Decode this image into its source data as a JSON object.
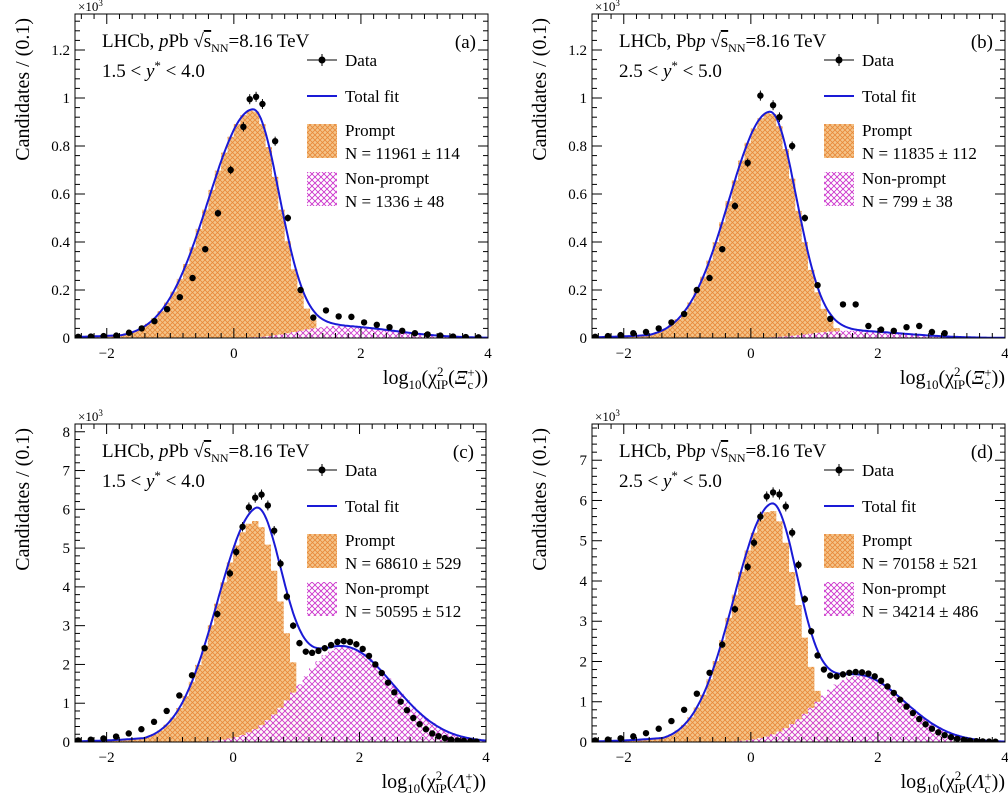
{
  "colors": {
    "data": "#000000",
    "total_fit": "#1a1ad6",
    "prompt": "#e8a35a",
    "nonprompt": "#cc33cc"
  },
  "chart_data": [
    {
      "id": "a",
      "type": "histogram-fit",
      "panel_label": "(a)",
      "exp_label": "×10³",
      "experiment": "LHCb,",
      "beam": "pPb",
      "energy": "√sNN=8.16 TeV",
      "rapidity": "1.5 < y* < 4.0",
      "ylabel": "Candidates / (0.1)",
      "xlabel": "log10(χ²IP(Ξc+))",
      "xlim": [
        -2.5,
        4
      ],
      "ylim": [
        0,
        1.35
      ],
      "xticks": [
        -2,
        0,
        2,
        4
      ],
      "yticks": [
        0,
        0.2,
        0.4,
        0.6,
        0.8,
        1,
        1.2
      ],
      "ytick_labels": [
        "0",
        "0.2",
        "0.4",
        "0.6",
        "0.8",
        "1",
        "1.2"
      ],
      "legend": [
        "Data",
        "Total fit",
        "Prompt",
        "N = 11961 ± 114",
        "Non-prompt",
        "N = 1336 ± 48"
      ],
      "prompt": {
        "mu": 0.3,
        "sl": 0.7,
        "sr": 0.42,
        "amp": 0.95,
        "tail": 0.35
      },
      "nonprompt": {
        "mu": 1.6,
        "sl": 0.55,
        "sr": 0.9,
        "amp": 0.05
      },
      "data_points": [
        [
          -2.45,
          0.005
        ],
        [
          -2.25,
          0.006
        ],
        [
          -2.05,
          0.008
        ],
        [
          -1.85,
          0.01
        ],
        [
          -1.65,
          0.022
        ],
        [
          -1.45,
          0.04
        ],
        [
          -1.25,
          0.07
        ],
        [
          -1.05,
          0.12
        ],
        [
          -0.85,
          0.17
        ],
        [
          -0.65,
          0.25
        ],
        [
          -0.45,
          0.37
        ],
        [
          -0.25,
          0.52
        ],
        [
          -0.05,
          0.7
        ],
        [
          0.15,
          0.88
        ],
        [
          0.25,
          0.995
        ],
        [
          0.35,
          1.005
        ],
        [
          0.45,
          0.975
        ],
        [
          0.65,
          0.82
        ],
        [
          0.85,
          0.5
        ],
        [
          1.05,
          0.2
        ],
        [
          1.25,
          0.085
        ],
        [
          1.45,
          0.115
        ],
        [
          1.65,
          0.09
        ],
        [
          1.85,
          0.088
        ],
        [
          2.05,
          0.065
        ],
        [
          2.25,
          0.055
        ],
        [
          2.45,
          0.045
        ],
        [
          2.65,
          0.03
        ],
        [
          2.85,
          0.02
        ],
        [
          3.05,
          0.015
        ],
        [
          3.25,
          0.01
        ],
        [
          3.45,
          0.006
        ],
        [
          3.65,
          0.004
        ],
        [
          3.85,
          0.003
        ]
      ]
    },
    {
      "id": "b",
      "type": "histogram-fit",
      "panel_label": "(b)",
      "exp_label": "×10³",
      "experiment": "LHCb,",
      "beam": "Pbp",
      "energy": "√sNN=8.16 TeV",
      "rapidity": "2.5 < y* < 5.0",
      "ylabel": "Candidates / (0.1)",
      "xlabel": "log10(χ²IP(Ξc+))",
      "xlim": [
        -2.5,
        4
      ],
      "ylim": [
        0,
        1.35
      ],
      "xticks": [
        -2,
        0,
        2,
        4
      ],
      "yticks": [
        0,
        0.2,
        0.4,
        0.6,
        0.8,
        1,
        1.2
      ],
      "ytick_labels": [
        "0",
        "0.2",
        "0.4",
        "0.6",
        "0.8",
        "1",
        "1.2"
      ],
      "legend": [
        "Data",
        "Total fit",
        "Prompt",
        "N = 11835 ± 112",
        "Non-prompt",
        "N = 799 ± 38"
      ],
      "prompt": {
        "mu": 0.3,
        "sl": 0.65,
        "sr": 0.42,
        "amp": 0.94,
        "tail": 0.35
      },
      "nonprompt": {
        "mu": 1.5,
        "sl": 0.55,
        "sr": 0.9,
        "amp": 0.03
      },
      "data_points": [
        [
          -2.45,
          0.005
        ],
        [
          -2.25,
          0.008
        ],
        [
          -2.05,
          0.012
        ],
        [
          -1.85,
          0.02
        ],
        [
          -1.65,
          0.025
        ],
        [
          -1.45,
          0.04
        ],
        [
          -1.25,
          0.065
        ],
        [
          -1.05,
          0.1
        ],
        [
          -0.85,
          0.2
        ],
        [
          -0.65,
          0.25
        ],
        [
          -0.45,
          0.37
        ],
        [
          -0.25,
          0.55
        ],
        [
          -0.05,
          0.73
        ],
        [
          0.15,
          1.01
        ],
        [
          0.35,
          0.97
        ],
        [
          0.45,
          0.92
        ],
        [
          0.65,
          0.8
        ],
        [
          0.85,
          0.5
        ],
        [
          1.05,
          0.22
        ],
        [
          1.25,
          0.08
        ],
        [
          1.45,
          0.14
        ],
        [
          1.65,
          0.14
        ],
        [
          1.85,
          0.05
        ],
        [
          2.05,
          0.035
        ],
        [
          2.25,
          0.03
        ],
        [
          2.45,
          0.045
        ],
        [
          2.65,
          0.05
        ],
        [
          2.85,
          0.025
        ],
        [
          3.05,
          0.02
        ]
      ]
    },
    {
      "id": "c",
      "type": "histogram-fit",
      "panel_label": "(c)",
      "exp_label": "×10³",
      "experiment": "LHCb,",
      "beam": "pPb",
      "energy": "√sNN=8.16 TeV",
      "rapidity": "1.5 < y* < 4.0",
      "ylabel": "Candidates / (0.1)",
      "xlabel": "log10(χ²IP(Λc+))",
      "xlim": [
        -2.5,
        4
      ],
      "ylim": [
        0,
        8.2
      ],
      "xticks": [
        -2,
        0,
        2,
        4
      ],
      "yticks": [
        0,
        1,
        2,
        3,
        4,
        5,
        6,
        7,
        8
      ],
      "ytick_labels": [
        "0",
        "1",
        "2",
        "3",
        "4",
        "5",
        "6",
        "7",
        "8"
      ],
      "legend": [
        "Data",
        "Total fit",
        "Prompt",
        "N = 68610 ± 529",
        "Non-prompt",
        "N = 50595 ± 512"
      ],
      "prompt": {
        "mu": 0.35,
        "sl": 0.62,
        "sr": 0.42,
        "amp": 5.7,
        "tail": 0.45
      },
      "nonprompt": {
        "mu": 1.75,
        "sl": 0.7,
        "sr": 0.78,
        "amp": 2.45
      },
      "data_points": [
        [
          -2.45,
          0.04
        ],
        [
          -2.25,
          0.06
        ],
        [
          -2.05,
          0.09
        ],
        [
          -1.85,
          0.14
        ],
        [
          -1.65,
          0.22
        ],
        [
          -1.45,
          0.33
        ],
        [
          -1.25,
          0.52
        ],
        [
          -1.05,
          0.8
        ],
        [
          -0.85,
          1.2
        ],
        [
          -0.65,
          1.72
        ],
        [
          -0.45,
          2.42
        ],
        [
          -0.25,
          3.3
        ],
        [
          -0.05,
          4.35
        ],
        [
          0.05,
          4.9
        ],
        [
          0.15,
          5.55
        ],
        [
          0.25,
          6.05
        ],
        [
          0.35,
          6.3
        ],
        [
          0.45,
          6.38
        ],
        [
          0.55,
          6.1
        ],
        [
          0.65,
          5.45
        ],
        [
          0.75,
          4.6
        ],
        [
          0.85,
          3.75
        ],
        [
          0.95,
          3.0
        ],
        [
          1.05,
          2.55
        ],
        [
          1.15,
          2.33
        ],
        [
          1.25,
          2.3
        ],
        [
          1.35,
          2.35
        ],
        [
          1.45,
          2.42
        ],
        [
          1.55,
          2.5
        ],
        [
          1.65,
          2.58
        ],
        [
          1.75,
          2.6
        ],
        [
          1.85,
          2.58
        ],
        [
          1.95,
          2.52
        ],
        [
          2.05,
          2.4
        ],
        [
          2.15,
          2.22
        ],
        [
          2.25,
          2.0
        ],
        [
          2.35,
          1.78
        ],
        [
          2.45,
          1.53
        ],
        [
          2.55,
          1.28
        ],
        [
          2.65,
          1.04
        ],
        [
          2.75,
          0.82
        ],
        [
          2.85,
          0.62
        ],
        [
          2.95,
          0.46
        ],
        [
          3.05,
          0.33
        ],
        [
          3.15,
          0.22
        ],
        [
          3.25,
          0.15
        ],
        [
          3.35,
          0.1
        ],
        [
          3.45,
          0.06
        ],
        [
          3.55,
          0.04
        ],
        [
          3.65,
          0.03
        ],
        [
          3.75,
          0.02
        ],
        [
          3.85,
          0.01
        ]
      ]
    },
    {
      "id": "d",
      "type": "histogram-fit",
      "panel_label": "(d)",
      "exp_label": "×10³",
      "experiment": "LHCb,",
      "beam": "Pbp",
      "energy": "√sNN=8.16 TeV",
      "rapidity": "2.5 < y* < 5.0",
      "ylabel": "Candidates / (0.1)",
      "xlabel": "log10(χ²IP(Λc+))",
      "xlim": [
        -2.5,
        4
      ],
      "ylim": [
        0,
        7.9
      ],
      "xticks": [
        -2,
        0,
        2,
        4
      ],
      "yticks": [
        0,
        1,
        2,
        3,
        4,
        5,
        6,
        7
      ],
      "ytick_labels": [
        "0",
        "1",
        "2",
        "3",
        "4",
        "5",
        "6",
        "7"
      ],
      "legend": [
        "Data",
        "Total fit",
        "Prompt",
        "N = 70158 ± 521",
        "Non-prompt",
        "N = 34214 ± 486"
      ],
      "prompt": {
        "mu": 0.32,
        "sl": 0.6,
        "sr": 0.42,
        "amp": 5.75,
        "tail": 0.45
      },
      "nonprompt": {
        "mu": 1.7,
        "sl": 0.65,
        "sr": 0.72,
        "amp": 1.65
      },
      "data_points": [
        [
          -2.45,
          0.04
        ],
        [
          -2.25,
          0.06
        ],
        [
          -2.05,
          0.09
        ],
        [
          -1.85,
          0.14
        ],
        [
          -1.65,
          0.22
        ],
        [
          -1.45,
          0.33
        ],
        [
          -1.25,
          0.52
        ],
        [
          -1.05,
          0.8
        ],
        [
          -0.85,
          1.2
        ],
        [
          -0.65,
          1.72
        ],
        [
          -0.45,
          2.42
        ],
        [
          -0.25,
          3.3
        ],
        [
          -0.05,
          4.35
        ],
        [
          0.05,
          4.95
        ],
        [
          0.15,
          5.6
        ],
        [
          0.25,
          6.1
        ],
        [
          0.35,
          6.2
        ],
        [
          0.45,
          6.15
        ],
        [
          0.55,
          5.85
        ],
        [
          0.65,
          5.2
        ],
        [
          0.75,
          4.4
        ],
        [
          0.85,
          3.55
        ],
        [
          0.95,
          2.75
        ],
        [
          1.05,
          2.15
        ],
        [
          1.15,
          1.8
        ],
        [
          1.25,
          1.65
        ],
        [
          1.35,
          1.63
        ],
        [
          1.45,
          1.68
        ],
        [
          1.55,
          1.72
        ],
        [
          1.65,
          1.74
        ],
        [
          1.75,
          1.73
        ],
        [
          1.85,
          1.7
        ],
        [
          1.95,
          1.63
        ],
        [
          2.05,
          1.52
        ],
        [
          2.15,
          1.38
        ],
        [
          2.25,
          1.22
        ],
        [
          2.35,
          1.05
        ],
        [
          2.45,
          0.88
        ],
        [
          2.55,
          0.72
        ],
        [
          2.65,
          0.57
        ],
        [
          2.75,
          0.44
        ],
        [
          2.85,
          0.33
        ],
        [
          2.95,
          0.24
        ],
        [
          3.05,
          0.17
        ],
        [
          3.15,
          0.12
        ],
        [
          3.25,
          0.08
        ],
        [
          3.35,
          0.05
        ],
        [
          3.45,
          0.03
        ],
        [
          3.55,
          0.02
        ],
        [
          3.65,
          0.015
        ],
        [
          3.75,
          0.01
        ],
        [
          3.85,
          0.008
        ]
      ]
    }
  ]
}
